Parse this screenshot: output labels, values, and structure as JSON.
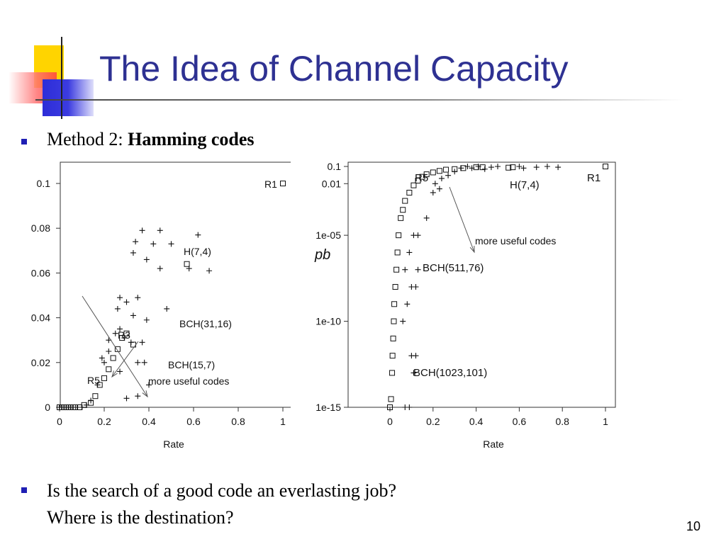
{
  "slide": {
    "title": "The Idea of Channel Capacity",
    "bullet1_prefix": "Method 2: ",
    "bullet1_bold": "Hamming codes",
    "bullet2_line1": "Is the search of a good code an everlasting job?",
    "bullet2_line2": "Where is the destination?",
    "page_number": "10",
    "title_color": "#2e3192",
    "bullet_color": "#1f1fb4"
  },
  "chart_data": [
    {
      "type": "scatter",
      "scale": "linear",
      "xlabel": "Rate",
      "ylabel": "",
      "xlim": [
        0,
        1
      ],
      "ylim": [
        0,
        0.1
      ],
      "xticks": [
        "0",
        "0.2",
        "0.4",
        "0.6",
        "0.8",
        "1"
      ],
      "yticks": [
        "0",
        "0.02",
        "0.04",
        "0.06",
        "0.08",
        "0.1"
      ],
      "grid": false,
      "series": [
        {
          "marker": "square",
          "points": [
            [
              0.0,
              0.0
            ],
            [
              0.01,
              0.0
            ],
            [
              0.02,
              0.0
            ],
            [
              0.03,
              0.0
            ],
            [
              0.04,
              0.0
            ],
            [
              0.05,
              0.0
            ],
            [
              0.06,
              0.0
            ],
            [
              0.07,
              0.0
            ],
            [
              0.09,
              0.0
            ],
            [
              0.11,
              0.001
            ],
            [
              0.14,
              0.002
            ],
            [
              0.16,
              0.005
            ],
            [
              0.18,
              0.01
            ],
            [
              0.2,
              0.013
            ],
            [
              0.22,
              0.017
            ],
            [
              0.24,
              0.022
            ],
            [
              0.26,
              0.026
            ],
            [
              0.28,
              0.031
            ],
            [
              0.3,
              0.033
            ],
            [
              0.33,
              0.028
            ],
            [
              0.57,
              0.064
            ],
            [
              1.0,
              0.1
            ]
          ]
        },
        {
          "marker": "plus",
          "points": [
            [
              0.0,
              0.0
            ],
            [
              0.02,
              0.0
            ],
            [
              0.04,
              0.0
            ],
            [
              0.06,
              0.0
            ],
            [
              0.08,
              0.0
            ],
            [
              0.1,
              0.0
            ],
            [
              0.12,
              0.001
            ],
            [
              0.14,
              0.003
            ],
            [
              0.17,
              0.01
            ],
            [
              0.2,
              0.02
            ],
            [
              0.22,
              0.025
            ],
            [
              0.25,
              0.033
            ],
            [
              0.27,
              0.035
            ],
            [
              0.29,
              0.031
            ],
            [
              0.32,
              0.029
            ],
            [
              0.35,
              0.02
            ],
            [
              0.38,
              0.02
            ],
            [
              0.4,
              0.01
            ],
            [
              0.19,
              0.022
            ],
            [
              0.22,
              0.03
            ],
            [
              0.27,
              0.049
            ],
            [
              0.26,
              0.044
            ],
            [
              0.3,
              0.047
            ],
            [
              0.35,
              0.049
            ],
            [
              0.33,
              0.041
            ],
            [
              0.39,
              0.039
            ],
            [
              0.48,
              0.044
            ],
            [
              0.27,
              0.016
            ],
            [
              0.35,
              0.005
            ],
            [
              0.3,
              0.004
            ],
            [
              0.37,
              0.029
            ],
            [
              0.33,
              0.069
            ],
            [
              0.34,
              0.074
            ],
            [
              0.37,
              0.079
            ],
            [
              0.39,
              0.066
            ],
            [
              0.42,
              0.073
            ],
            [
              0.45,
              0.079
            ],
            [
              0.45,
              0.062
            ],
            [
              0.5,
              0.073
            ],
            [
              0.58,
              0.062
            ],
            [
              0.62,
              0.077
            ],
            [
              0.67,
              0.061
            ]
          ]
        }
      ],
      "annotations": [
        "R1",
        "H(7,4)",
        "BCH(31,16)",
        "R3",
        "BCH(15,7)",
        "R5",
        "more useful codes"
      ]
    },
    {
      "type": "scatter",
      "scale": "log",
      "xlabel": "Rate",
      "ylabel": "pb",
      "xlim": [
        0,
        1
      ],
      "ylim": [
        "1e-15",
        "0.1"
      ],
      "xticks": [
        "0",
        "0.2",
        "0.4",
        "0.6",
        "0.8",
        "1"
      ],
      "yticks": [
        "0.1",
        "0.01",
        "1e-05",
        "1e-10",
        "1e-15"
      ],
      "grid": false,
      "series": [
        {
          "marker": "square",
          "points": [
            [
              0.0,
              1e-15
            ],
            [
              0.005,
              3e-15
            ],
            [
              0.01,
              1e-13
            ],
            [
              0.012,
              1e-12
            ],
            [
              0.015,
              1e-11
            ],
            [
              0.018,
              1e-10
            ],
            [
              0.02,
              1e-09
            ],
            [
              0.025,
              1e-08
            ],
            [
              0.03,
              1e-07
            ],
            [
              0.035,
              1e-06
            ],
            [
              0.04,
              1e-05
            ],
            [
              0.05,
              0.0001
            ],
            [
              0.06,
              0.0003
            ],
            [
              0.07,
              0.001
            ],
            [
              0.09,
              0.003
            ],
            [
              0.11,
              0.008
            ],
            [
              0.13,
              0.015
            ],
            [
              0.15,
              0.025
            ],
            [
              0.17,
              0.035
            ],
            [
              0.2,
              0.045
            ],
            [
              0.23,
              0.055
            ],
            [
              0.26,
              0.065
            ],
            [
              0.3,
              0.07
            ],
            [
              0.34,
              0.08
            ],
            [
              0.4,
              0.09
            ],
            [
              0.43,
              0.09
            ],
            [
              0.55,
              0.085
            ],
            [
              0.57,
              0.09
            ],
            [
              1.0,
              0.1
            ]
          ]
        },
        {
          "marker": "plus",
          "points": [
            [
              0.07,
              1e-15
            ],
            [
              0.09,
              1e-15
            ],
            [
              0.1,
              1e-12
            ],
            [
              0.12,
              1e-12
            ],
            [
              0.11,
              1e-13
            ],
            [
              0.06,
              1e-10
            ],
            [
              0.08,
              1e-09
            ],
            [
              0.1,
              1e-08
            ],
            [
              0.07,
              1e-07
            ],
            [
              0.12,
              1e-08
            ],
            [
              0.13,
              1e-07
            ],
            [
              0.09,
              1e-06
            ],
            [
              0.11,
              1e-05
            ],
            [
              0.13,
              1e-05
            ],
            [
              0.17,
              0.0001
            ],
            [
              0.2,
              0.003
            ],
            [
              0.23,
              0.005
            ],
            [
              0.21,
              0.01
            ],
            [
              0.24,
              0.02
            ],
            [
              0.27,
              0.03
            ],
            [
              0.3,
              0.05
            ],
            [
              0.33,
              0.08
            ],
            [
              0.36,
              0.1
            ],
            [
              0.38,
              0.08
            ],
            [
              0.41,
              0.1
            ],
            [
              0.44,
              0.07
            ],
            [
              0.47,
              0.09
            ],
            [
              0.5,
              0.1
            ],
            [
              0.6,
              0.1
            ],
            [
              0.62,
              0.08
            ],
            [
              0.68,
              0.09
            ],
            [
              0.73,
              0.1
            ],
            [
              0.78,
              0.09
            ]
          ]
        }
      ],
      "annotations": [
        "R1",
        "R5",
        "H(7,4)",
        "more useful codes",
        "BCH(511,76)",
        "BCH(1023,101)"
      ]
    }
  ]
}
